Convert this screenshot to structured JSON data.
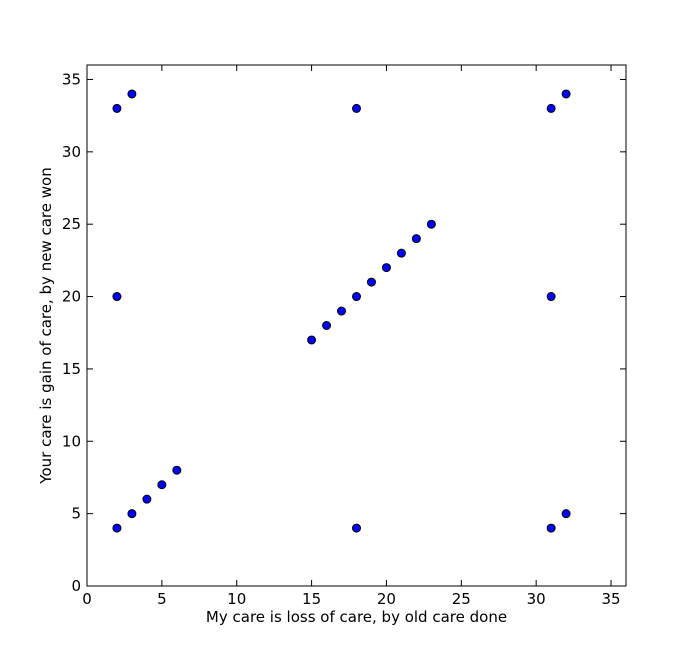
{
  "chart_data": {
    "type": "scatter",
    "title": "",
    "xlabel": "My care is loss of care, by old care done",
    "ylabel": "Your care is gain of care, by new care won",
    "xlim": [
      0,
      36
    ],
    "ylim": [
      0,
      36
    ],
    "xticks": [
      "0",
      "5",
      "10",
      "15",
      "20",
      "25",
      "30",
      "35"
    ],
    "yticks": [
      "0",
      "5",
      "10",
      "15",
      "20",
      "25",
      "30",
      "35"
    ],
    "grid": false,
    "marker_color": "#0000ff",
    "marker_edge_color": "#000000",
    "series": [
      {
        "points": [
          {
            "x": 2,
            "y": 33
          },
          {
            "x": 3,
            "y": 34
          },
          {
            "x": 18,
            "y": 33
          },
          {
            "x": 31,
            "y": 33
          },
          {
            "x": 32,
            "y": 34
          },
          {
            "x": 2,
            "y": 20
          },
          {
            "x": 31,
            "y": 20
          },
          {
            "x": 15,
            "y": 17
          },
          {
            "x": 16,
            "y": 18
          },
          {
            "x": 17,
            "y": 19
          },
          {
            "x": 18,
            "y": 20
          },
          {
            "x": 19,
            "y": 21
          },
          {
            "x": 20,
            "y": 22
          },
          {
            "x": 21,
            "y": 23
          },
          {
            "x": 22,
            "y": 24
          },
          {
            "x": 23,
            "y": 25
          },
          {
            "x": 2,
            "y": 4
          },
          {
            "x": 3,
            "y": 5
          },
          {
            "x": 4,
            "y": 6
          },
          {
            "x": 5,
            "y": 7
          },
          {
            "x": 6,
            "y": 8
          },
          {
            "x": 18,
            "y": 4
          },
          {
            "x": 31,
            "y": 4
          },
          {
            "x": 32,
            "y": 5
          }
        ]
      }
    ]
  }
}
